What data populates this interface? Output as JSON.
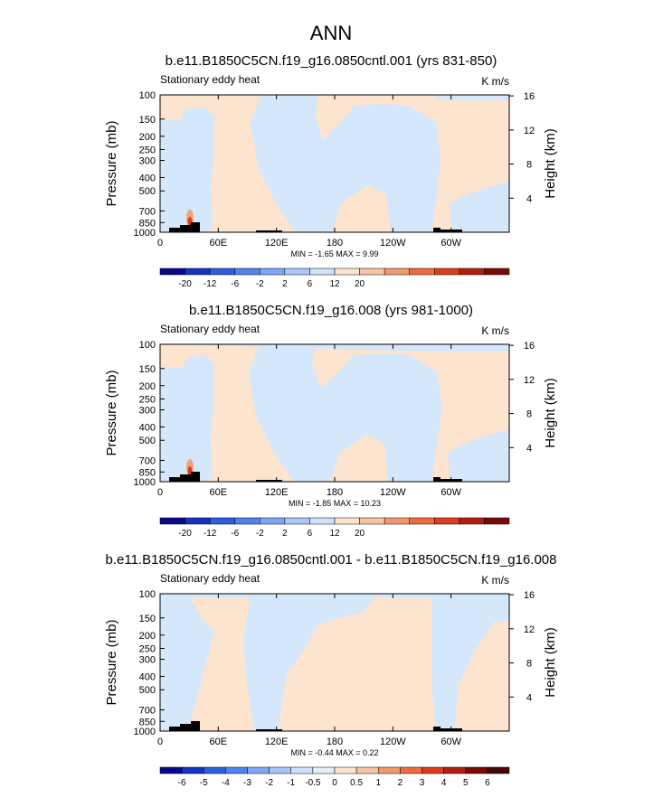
{
  "figure": {
    "title": "ANN"
  },
  "colors": {
    "warm_bg": "#fde4cf",
    "cool_bg": "#d5e7fa",
    "topography": "#000000",
    "palette_full": [
      "#08088c",
      "#1433c1",
      "#2a5fe0",
      "#4f83f0",
      "#7ea6f5",
      "#aac6f9",
      "#cfe0fb",
      "#fde4cf",
      "#f8c4a2",
      "#f3986c",
      "#ed6b3f",
      "#dd3d1c",
      "#b11e10",
      "#7a0a04"
    ]
  },
  "chart_data": [
    {
      "type": "heatmap",
      "title": "b.e11.B1850C5CN.f19_g16.0850cntl.001 (yrs 831-850)",
      "left_label": "Stationary eddy heat",
      "right_label": "K m/s",
      "ylabel": "Pressure (mb)",
      "ylabel_right": "Height (km)",
      "y_ticks": [
        "100",
        "150",
        "200",
        "250",
        "300",
        "400",
        "500",
        "700",
        "850",
        "1000"
      ],
      "y_values": [
        100,
        150,
        200,
        250,
        300,
        400,
        500,
        700,
        850,
        1000
      ],
      "x_ticks": [
        "0",
        "60E",
        "120E",
        "180",
        "120W",
        "60W"
      ],
      "x_values": [
        0,
        60,
        120,
        180,
        240,
        300
      ],
      "xlim": [
        0,
        360
      ],
      "right_ticks": [
        "16",
        "12",
        "8",
        "4"
      ],
      "right_values": [
        16,
        12,
        8,
        4
      ],
      "stats": "MIN =  -1.65  MAX =  9.99",
      "colorbar_labels": [
        "-20",
        "-12",
        "-6",
        "-2",
        "2",
        "6",
        "12",
        "20"
      ],
      "colorbar_colors": [
        "#08088c",
        "#1433c1",
        "#2a5fe0",
        "#4f83f0",
        "#7ea6f5",
        "#aac6f9",
        "#cfe0fb",
        "#fde4cf",
        "#f8c4a2",
        "#f3986c",
        "#ed6b3f",
        "#dd3d1c",
        "#b11e10",
        "#7a0a04"
      ]
    },
    {
      "type": "heatmap",
      "title": "b.e11.B1850C5CN.f19_g16.008 (yrs 981-1000)",
      "left_label": "Stationary eddy heat",
      "right_label": "K m/s",
      "ylabel": "Pressure (mb)",
      "ylabel_right": "Height (km)",
      "y_ticks": [
        "100",
        "150",
        "200",
        "250",
        "300",
        "400",
        "500",
        "700",
        "850",
        "1000"
      ],
      "y_values": [
        100,
        150,
        200,
        250,
        300,
        400,
        500,
        700,
        850,
        1000
      ],
      "x_ticks": [
        "0",
        "60E",
        "120E",
        "180",
        "120W",
        "60W"
      ],
      "x_values": [
        0,
        60,
        120,
        180,
        240,
        300
      ],
      "xlim": [
        0,
        360
      ],
      "right_ticks": [
        "16",
        "12",
        "8",
        "4"
      ],
      "right_values": [
        16,
        12,
        8,
        4
      ],
      "stats": "MIN =  -1.85  MAX =  10.23",
      "colorbar_labels": [
        "-20",
        "-12",
        "-6",
        "-2",
        "2",
        "6",
        "12",
        "20"
      ],
      "colorbar_colors": [
        "#08088c",
        "#1433c1",
        "#2a5fe0",
        "#4f83f0",
        "#7ea6f5",
        "#aac6f9",
        "#cfe0fb",
        "#fde4cf",
        "#f8c4a2",
        "#f3986c",
        "#ed6b3f",
        "#dd3d1c",
        "#b11e10",
        "#7a0a04"
      ]
    },
    {
      "type": "heatmap",
      "title": "b.e11.B1850C5CN.f19_g16.0850cntl.001 - b.e11.B1850C5CN.f19_g16.008",
      "left_label": "Stationary eddy heat",
      "right_label": "K m/s",
      "ylabel": "Pressure (mb)",
      "ylabel_right": "Height (km)",
      "y_ticks": [
        "100",
        "150",
        "200",
        "250",
        "300",
        "400",
        "500",
        "700",
        "850",
        "1000"
      ],
      "y_values": [
        100,
        150,
        200,
        250,
        300,
        400,
        500,
        700,
        850,
        1000
      ],
      "x_ticks": [
        "0",
        "60E",
        "120E",
        "180",
        "120W",
        "60W"
      ],
      "x_values": [
        0,
        60,
        120,
        180,
        240,
        300
      ],
      "xlim": [
        0,
        360
      ],
      "right_ticks": [
        "16",
        "12",
        "8",
        "4"
      ],
      "right_values": [
        16,
        12,
        8,
        4
      ],
      "stats": "MIN =  -0.44  MAX =  0.22",
      "colorbar_labels": [
        "-6",
        "-5",
        "-4",
        "-3",
        "-2",
        "-1",
        "-0.5",
        "0",
        "0.5",
        "1",
        "2",
        "3",
        "4",
        "5",
        "6"
      ],
      "colorbar_colors": [
        "#08088c",
        "#1433c1",
        "#2a5fe0",
        "#4f83f0",
        "#7ea6f5",
        "#aac6f9",
        "#cfe0fb",
        "#e3eefb",
        "#fde4cf",
        "#f8c4a2",
        "#f3986c",
        "#ed6b3f",
        "#dd3d1c",
        "#b11e10",
        "#7a0a04",
        "#4a0602"
      ]
    }
  ]
}
